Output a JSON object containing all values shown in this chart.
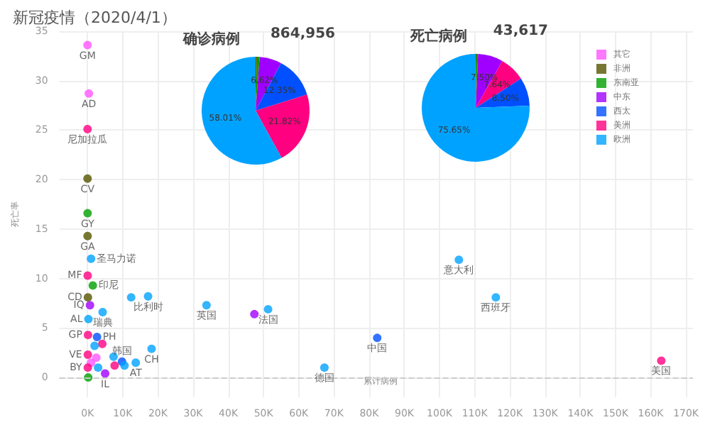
{
  "chart_data": [
    {
      "type": "scatter",
      "title": "新冠疫情（2020/4/1）",
      "xlabel": "累计病例",
      "ylabel": "死亡率",
      "marker": "circle",
      "grid": true,
      "legend": "top right",
      "xlim": [
        -8000,
        172000
      ],
      "xticks": [
        {
          "value": 0,
          "label": "0K"
        },
        {
          "value": 10000,
          "label": "10K"
        },
        {
          "value": 20000,
          "label": "20K"
        },
        {
          "value": 30000,
          "label": "30K"
        },
        {
          "value": 40000,
          "label": "40K"
        },
        {
          "value": 50000,
          "label": "50K"
        },
        {
          "value": 60000,
          "label": "60K"
        },
        {
          "value": 70000,
          "label": "70K"
        },
        {
          "value": 80000,
          "label": "80K"
        },
        {
          "value": 90000,
          "label": "90K"
        },
        {
          "value": 100000,
          "label": "100K"
        },
        {
          "value": 110000,
          "label": "110K"
        },
        {
          "value": 120000,
          "label": "120K"
        },
        {
          "value": 130000,
          "label": "130K"
        },
        {
          "value": 140000,
          "label": "140K"
        },
        {
          "value": 150000,
          "label": "150K"
        },
        {
          "value": 160000,
          "label": "160K"
        },
        {
          "value": 170000,
          "label": "170K"
        }
      ],
      "ylim": [
        -2,
        35
      ],
      "yticks": [
        0,
        5,
        10,
        15,
        20,
        25,
        30,
        35
      ],
      "ref_lines": [
        {
          "axis": "y",
          "value": 0,
          "line_style": "dashed",
          "color": "#cccccc"
        }
      ],
      "series": [
        {
          "name": "其它",
          "color": "#ff55ff",
          "x": [
            1000,
            2500,
            4,
            370
          ],
          "values": [
            1.5,
            2.0,
            33.6,
            28.7
          ]
        },
        {
          "name": "非洲",
          "color": "#555500",
          "x": [
            110,
            6,
            20
          ],
          "values": [
            8.1,
            20.1,
            14.3
          ]
        },
        {
          "name": "东南亚",
          "color": "#00a000",
          "x": [
            1500,
            200,
            19
          ],
          "values": [
            9.3,
            0.0,
            16.6
          ]
        },
        {
          "name": "中东",
          "color": "#a000ff",
          "x": [
            47400,
            700,
            5000
          ],
          "values": [
            6.4,
            7.3,
            0.4
          ]
        },
        {
          "name": "西太",
          "color": "#0050ff",
          "x": [
            82300,
            9800,
            2700
          ],
          "values": [
            4.0,
            1.6,
            4.1
          ]
        },
        {
          "name": "美洲",
          "color": "#ff0080",
          "x": [
            163000,
            7700,
            4200,
            5,
            130,
            40,
            90,
            80
          ],
          "values": [
            1.7,
            1.2,
            3.4,
            25.1,
            4.3,
            10.3,
            2.3,
            1.0
          ]
        },
        {
          "name": "欧洲",
          "color": "#00a2ff",
          "x": [
            105500,
            116000,
            67300,
            51300,
            33800,
            17200,
            12400,
            18200,
            10500,
            13700,
            7400,
            4300,
            250,
            1000,
            2000,
            3000
          ],
          "values": [
            11.9,
            8.1,
            1.0,
            6.9,
            7.3,
            8.2,
            8.1,
            2.9,
            1.2,
            1.5,
            2.1,
            6.6,
            5.9,
            12.0,
            3.2,
            1.0
          ]
        }
      ],
      "annotations": [
        {
          "text": "意大利",
          "x": 105500,
          "y": 11.9
        },
        {
          "text": "西班牙",
          "x": 116000,
          "y": 8.1
        },
        {
          "text": "德国",
          "x": 67300,
          "y": 1.0
        },
        {
          "text": "法国",
          "x": 51300,
          "y": 6.9
        },
        {
          "text": "英国",
          "x": 33800,
          "y": 7.3
        },
        {
          "text": "比利时",
          "x": 17200,
          "y": 8.2
        },
        {
          "text": "中国",
          "x": 82300,
          "y": 4.0
        },
        {
          "text": "美国",
          "x": 163000,
          "y": 1.7
        },
        {
          "text": "韩国",
          "x": 9800,
          "y": 1.6
        },
        {
          "text": "CH",
          "x": 18200,
          "y": 2.9
        },
        {
          "text": "IL",
          "x": 5000,
          "y": 0.4
        },
        {
          "text": "AT",
          "x": 13700,
          "y": 1.5
        },
        {
          "text": "瑞典",
          "x": 4300,
          "y": 6.6
        },
        {
          "text": "印尼",
          "x": 1500,
          "y": 9.3
        },
        {
          "text": "圣马力诺",
          "x": 1000,
          "y": 12.0
        },
        {
          "text": "PH",
          "x": 2700,
          "y": 4.1
        },
        {
          "text": "GM",
          "x": 4,
          "y": 33.6
        },
        {
          "text": "AD",
          "x": 370,
          "y": 28.7
        },
        {
          "text": "尼加拉瓜",
          "x": 5,
          "y": 25.1
        },
        {
          "text": "CV",
          "x": 6,
          "y": 20.1
        },
        {
          "text": "GY",
          "x": 19,
          "y": 16.6
        },
        {
          "text": "GA",
          "x": 20,
          "y": 14.3
        },
        {
          "text": "MF",
          "x": 40,
          "y": 10.3
        },
        {
          "text": "CD",
          "x": 110,
          "y": 8.1
        },
        {
          "text": "IQ",
          "x": 700,
          "y": 7.3
        },
        {
          "text": "AL",
          "x": 250,
          "y": 5.9
        },
        {
          "text": "GP",
          "x": 130,
          "y": 4.3
        },
        {
          "text": "VE",
          "x": 90,
          "y": 2.3
        },
        {
          "text": "BY",
          "x": 80,
          "y": 1.0
        }
      ]
    },
    {
      "type": "pie",
      "title": "确诊病例",
      "annotations": [
        "864,956"
      ],
      "categories": [
        null,
        null,
        null,
        null,
        null,
        null
      ],
      "values": [
        0.4,
        0.8,
        6.62,
        12.35,
        21.82,
        58.01
      ],
      "colors": [
        "#555500",
        "#00a000",
        "#a000ff",
        "#0050ff",
        "#ff0080",
        "#00a2ff"
      ],
      "value_labels": [
        null,
        null,
        "6.62%",
        "12.35%",
        "21.82%",
        "58.01%"
      ]
    },
    {
      "type": "pie",
      "title": "死亡病例",
      "annotations": [
        "43,617"
      ],
      "categories": [
        null,
        null,
        null,
        null,
        null,
        null
      ],
      "values": [
        0.21,
        0.5,
        7.5,
        7.64,
        8.5,
        75.65
      ],
      "colors": [
        "#555500",
        "#00a000",
        "#a000ff",
        "#ff0080",
        "#0050ff",
        "#00a2ff"
      ],
      "value_labels": [
        null,
        null,
        "7.50%",
        "7.64%",
        "8.50%",
        "75.65%"
      ]
    }
  ]
}
